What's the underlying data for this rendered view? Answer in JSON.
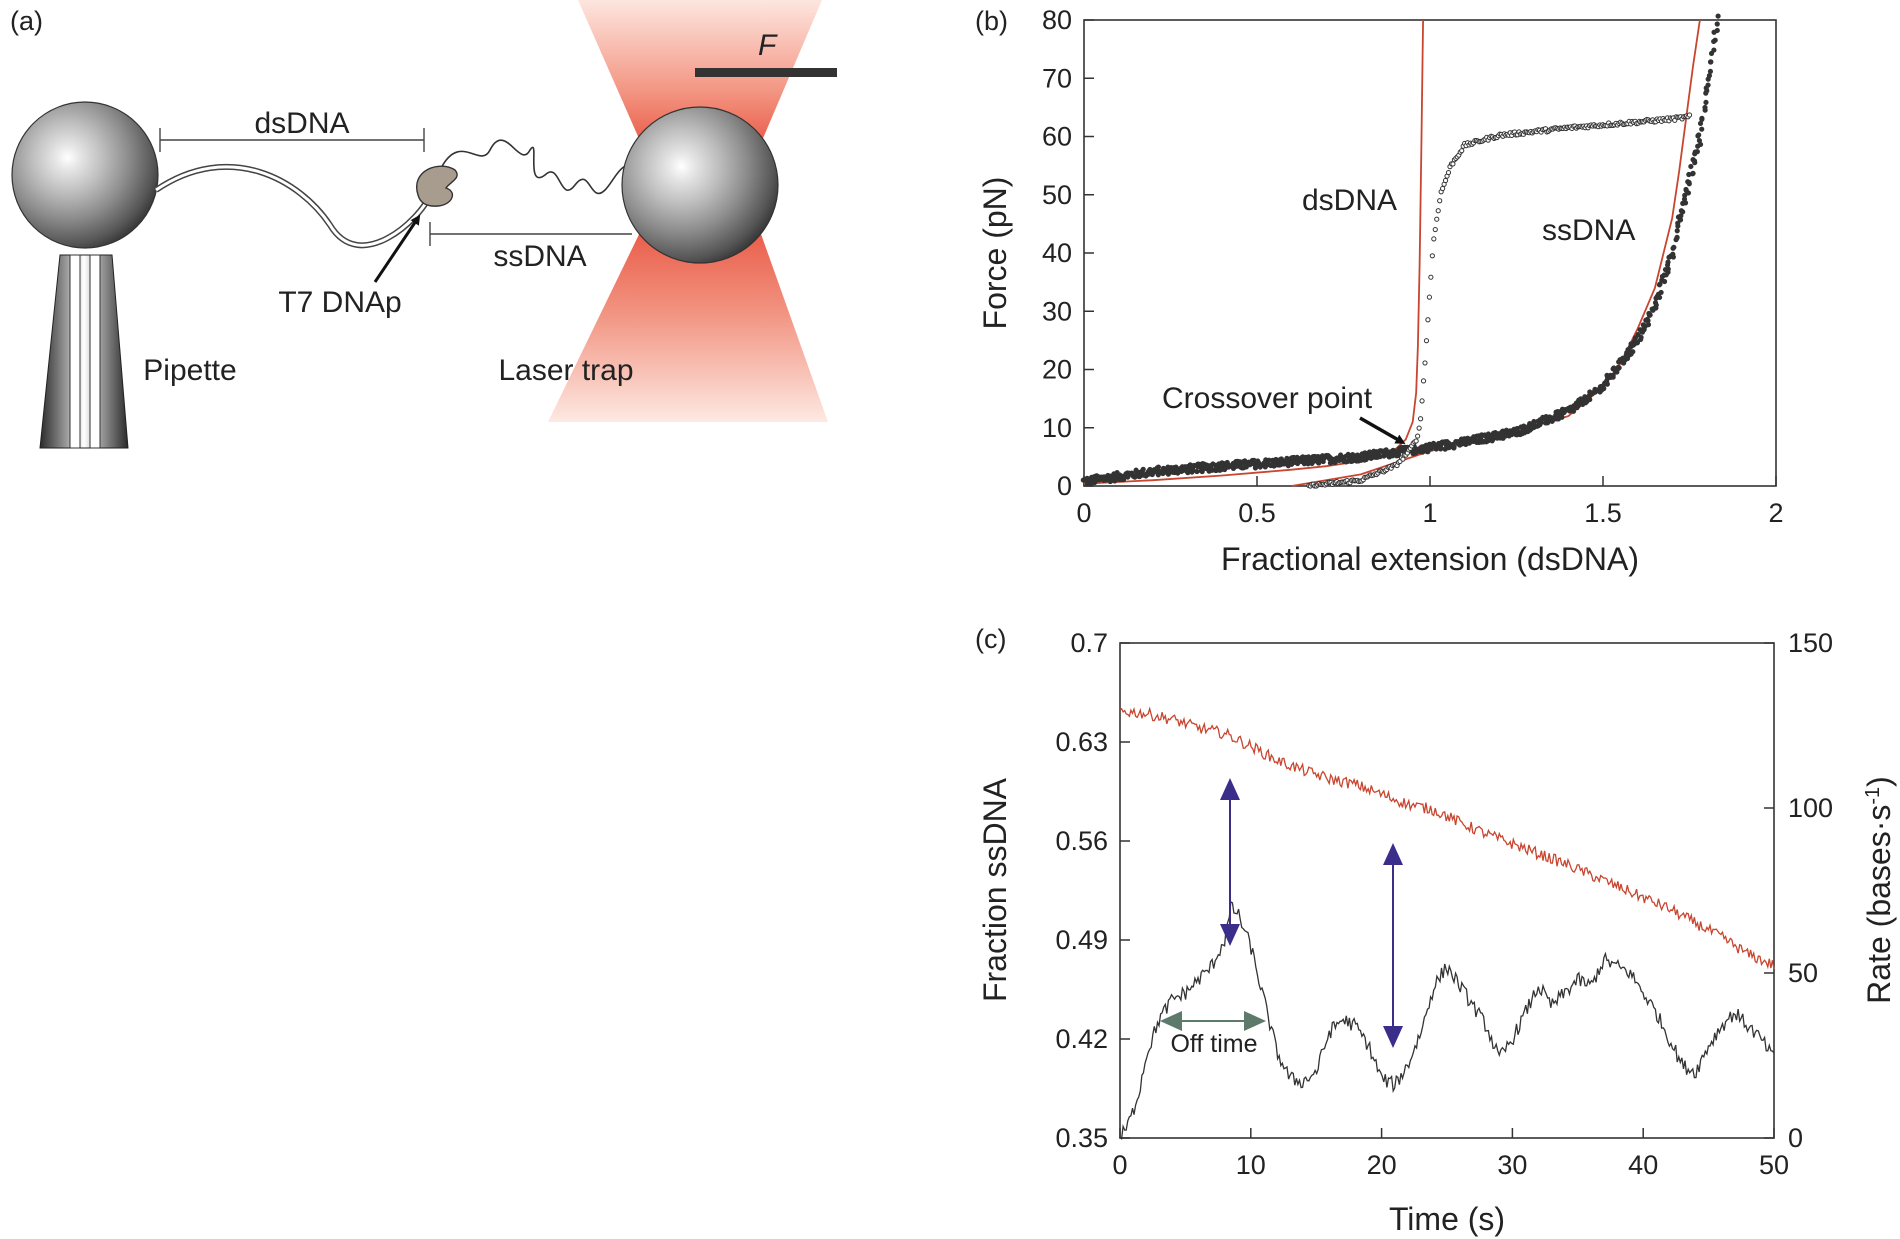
{
  "panel_a": {
    "label": "(a)",
    "labels": {
      "dsdna": "dsDNA",
      "ssdna": "ssDNA",
      "polymerase": "T7 DNAp",
      "pipette": "Pipette",
      "trap": "Laser trap",
      "force": "F"
    }
  },
  "chart_data": [
    {
      "panel": "(b)",
      "type": "scatter",
      "xlabel": "Fractional extension (dsDNA)",
      "ylabel": "Force (pN)",
      "xlim": [
        0,
        2
      ],
      "ylim": [
        0,
        80
      ],
      "xticks": [
        0,
        0.5,
        1,
        1.5,
        2
      ],
      "xtick_labels": [
        "0",
        "0.5",
        "1",
        "1.5",
        "2"
      ],
      "yticks": [
        0,
        10,
        20,
        30,
        40,
        50,
        60,
        70,
        80
      ],
      "ytick_labels": [
        "0",
        "10",
        "20",
        "30",
        "40",
        "50",
        "60",
        "70",
        "80"
      ],
      "fit_color": "#c8452f",
      "data_color": "#333333",
      "series": [
        {
          "name": "dsDNA fit",
          "kind": "line",
          "x": [
            0.0,
            0.2,
            0.4,
            0.6,
            0.7,
            0.8,
            0.85,
            0.9,
            0.93,
            0.95,
            0.96,
            0.965,
            0.97,
            0.975,
            0.98
          ],
          "y": [
            0.4,
            1.0,
            1.8,
            2.8,
            3.4,
            4.3,
            5.0,
            6.3,
            8.0,
            11.0,
            16.0,
            24.0,
            38.0,
            58.0,
            80.0
          ]
        },
        {
          "name": "ssDNA fit",
          "kind": "line",
          "x": [
            0.6,
            0.8,
            1.0,
            1.2,
            1.4,
            1.5,
            1.55,
            1.6,
            1.65,
            1.7,
            1.72,
            1.74,
            1.76,
            1.78
          ],
          "y": [
            0.0,
            2.0,
            6.0,
            8.5,
            12.0,
            17.0,
            21.0,
            27.0,
            34.0,
            46.0,
            54.0,
            63.0,
            72.0,
            80.0
          ]
        },
        {
          "name": "ssDNA data",
          "kind": "points",
          "x": [
            0.0,
            0.2,
            0.4,
            0.6,
            0.8,
            0.95,
            1.1,
            1.25,
            1.4,
            1.5,
            1.6,
            1.65,
            1.7,
            1.74,
            1.78,
            1.8,
            1.82,
            1.83
          ],
          "y": [
            0.8,
            2.5,
            3.4,
            4.2,
            5.0,
            6.2,
            7.5,
            9.3,
            12.8,
            17.0,
            25.0,
            31.0,
            40.0,
            50.0,
            60.0,
            68.0,
            76.0,
            80.0
          ]
        },
        {
          "name": "dsDNA data",
          "kind": "points",
          "x": [
            0.65,
            0.8,
            0.9,
            0.94,
            0.96,
            0.97,
            0.975,
            0.98,
            0.99,
            1.0,
            1.01,
            1.03,
            1.06,
            1.1,
            1.2,
            1.4,
            1.6,
            1.7,
            1.75
          ],
          "y": [
            0.0,
            1.0,
            3.5,
            6.0,
            8.0,
            10.0,
            13.0,
            17.0,
            25.0,
            34.0,
            42.0,
            50.0,
            55.0,
            58.5,
            60.2,
            61.5,
            62.5,
            63.0,
            63.4
          ]
        }
      ],
      "annotations": {
        "dsdna": "dsDNA",
        "ssdna": "ssDNA",
        "crossover": "Crossover point"
      }
    },
    {
      "panel": "(c)",
      "type": "line",
      "xlabel": "Time (s)",
      "ylabel_left": "Fraction ssDNA",
      "ylabel_right_main": "Rate (bases·s",
      "ylabel_right_sup": "-1",
      "ylabel_right_close": ")",
      "xlim": [
        0,
        50
      ],
      "ylim_left": [
        0.35,
        0.7
      ],
      "ylim_right": [
        0,
        150
      ],
      "xticks": [
        0,
        10,
        20,
        30,
        40,
        50
      ],
      "xtick_labels": [
        "0",
        "10",
        "20",
        "30",
        "40",
        "50"
      ],
      "yticks_left": [
        0.35,
        0.42,
        0.49,
        0.56,
        0.63,
        0.7
      ],
      "ytick_labels_left": [
        "0.35",
        "0.42",
        "0.49",
        "0.56",
        "0.63",
        "0.7"
      ],
      "yticks_right": [
        0,
        50,
        100,
        150
      ],
      "ytick_labels_right": [
        "0",
        "50",
        "100",
        "150"
      ],
      "series": [
        {
          "name": "Fraction ssDNA",
          "axis": "left",
          "color": "#c8452f",
          "x": [
            0,
            2,
            4,
            6,
            8,
            10,
            12,
            14,
            16,
            18,
            20,
            22,
            24,
            26,
            28,
            30,
            32,
            34,
            36,
            38,
            40,
            42,
            44,
            46,
            48,
            50
          ],
          "y": [
            0.652,
            0.65,
            0.646,
            0.64,
            0.636,
            0.627,
            0.617,
            0.61,
            0.604,
            0.6,
            0.593,
            0.586,
            0.582,
            0.573,
            0.565,
            0.558,
            0.551,
            0.544,
            0.536,
            0.528,
            0.52,
            0.512,
            0.502,
            0.492,
            0.48,
            0.472
          ]
        },
        {
          "name": "Rate",
          "axis": "right",
          "color": "#333333",
          "x": [
            0,
            0.5,
            1,
            1.5,
            2,
            3,
            4,
            5,
            6,
            7,
            8,
            8.5,
            9,
            10,
            11,
            12,
            13,
            14,
            15,
            16,
            17,
            18,
            19,
            20,
            21,
            22,
            23,
            24,
            25,
            26,
            27,
            28,
            29,
            30,
            31,
            32,
            33,
            34,
            35,
            36,
            37,
            38,
            39,
            40,
            41,
            42,
            43,
            44,
            45,
            46,
            47,
            48,
            49,
            50
          ],
          "y": [
            0,
            3,
            8,
            15,
            25,
            36,
            42,
            44,
            48,
            52,
            60,
            70,
            68,
            58,
            42,
            26,
            18,
            17,
            20,
            32,
            36,
            34,
            28,
            18,
            16,
            22,
            32,
            46,
            52,
            46,
            40,
            34,
            24,
            30,
            38,
            46,
            40,
            44,
            48,
            46,
            54,
            52,
            50,
            44,
            38,
            30,
            22,
            20,
            28,
            34,
            38,
            34,
            30,
            24
          ]
        }
      ],
      "annotations": {
        "off_time": "Off time"
      }
    }
  ]
}
